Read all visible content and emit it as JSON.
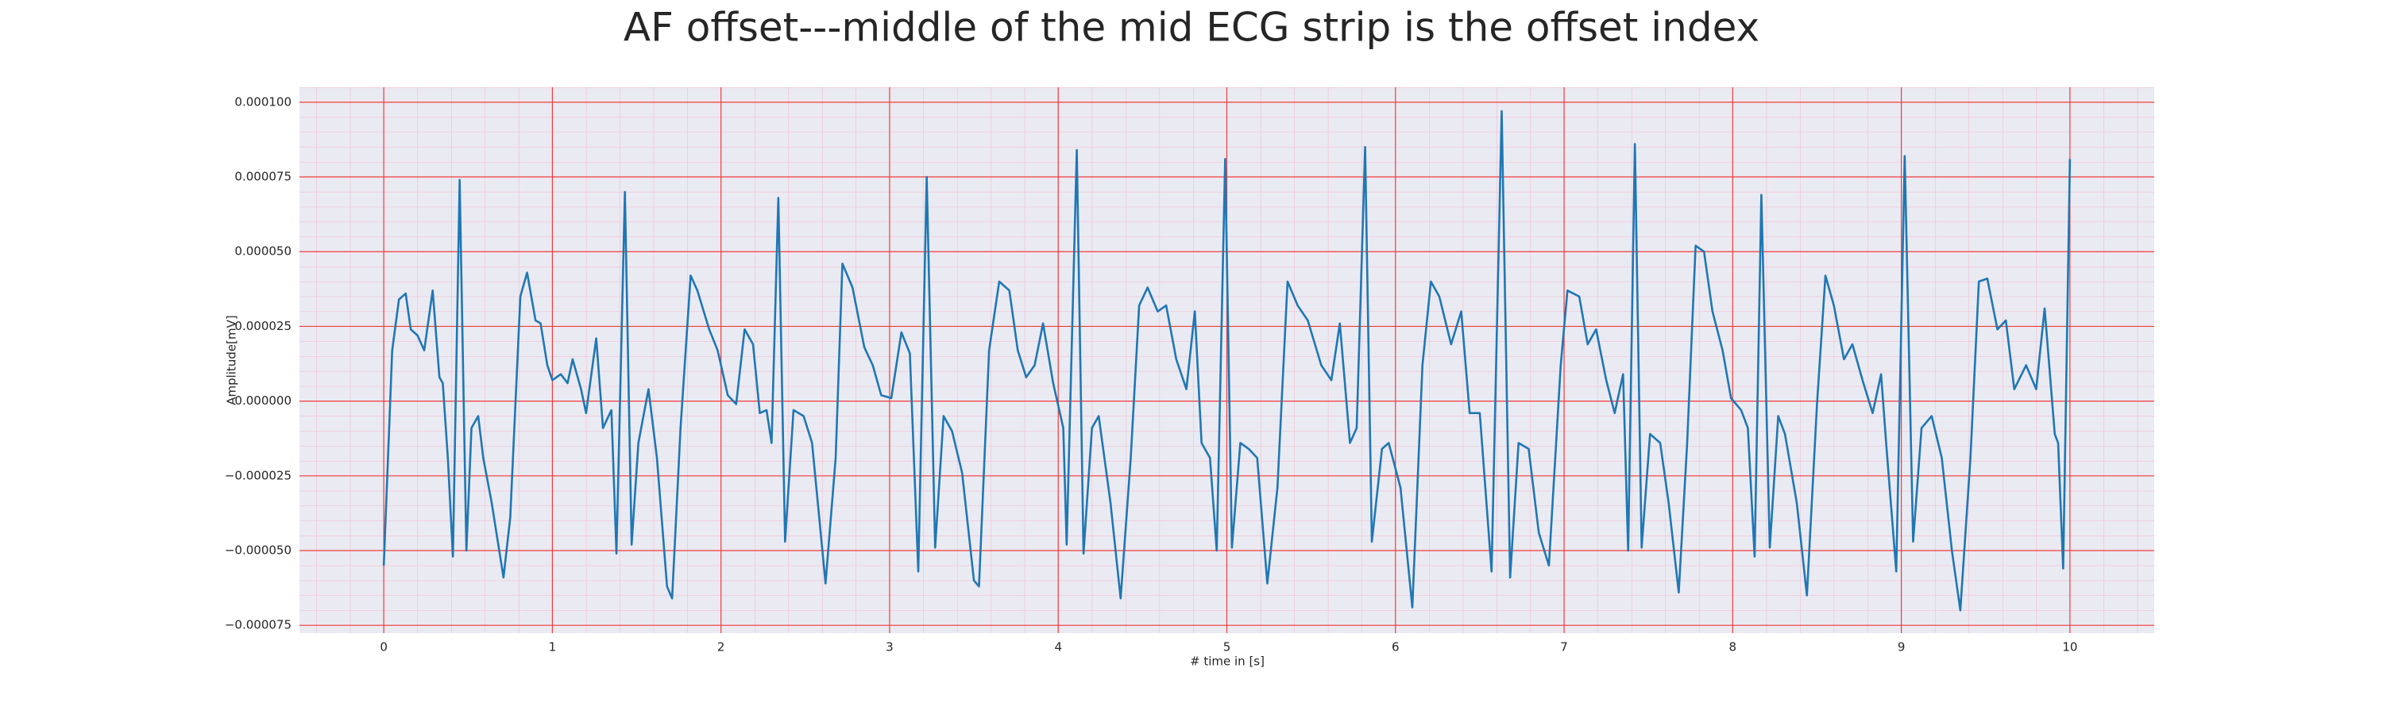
{
  "chart_data": {
    "type": "line",
    "title": "AF offset---middle of the mid ECG strip is the offset index",
    "xlabel": "# time in [s]",
    "ylabel": "Amplitude[mV]",
    "color": "#1f77b4",
    "grid": true,
    "minor_grid": true,
    "xlim": [
      -0.5,
      10.5
    ],
    "ylim": [
      -7.76e-05,
      0.000105
    ],
    "xticks": [
      0,
      1,
      2,
      3,
      4,
      5,
      6,
      7,
      8,
      9,
      10
    ],
    "yticks": [
      {
        "value": 0.0001,
        "label": "0.000100"
      },
      {
        "value": 7.5e-05,
        "label": "0.000075"
      },
      {
        "value": 5e-05,
        "label": "0.000050"
      },
      {
        "value": 2.5e-05,
        "label": "0.000025"
      },
      {
        "value": 0,
        "label": "0.000000"
      },
      {
        "value": -2.5e-05,
        "label": "−0.000025"
      },
      {
        "value": -5e-05,
        "label": "−0.000050"
      },
      {
        "value": -7.5e-05,
        "label": "−0.000075"
      }
    ],
    "x": [
      0,
      0.05,
      0.09,
      0.13,
      0.16,
      0.2,
      0.24,
      0.29,
      0.33,
      0.35,
      0.38,
      0.41,
      0.45,
      0.49,
      0.52,
      0.56,
      0.59,
      0.64,
      0.71,
      0.75,
      0.81,
      0.85,
      0.9,
      0.93,
      0.97,
      1.0,
      1.05,
      1.09,
      1.12,
      1.17,
      1.2,
      1.26,
      1.3,
      1.35,
      1.38,
      1.43,
      1.47,
      1.51,
      1.57,
      1.62,
      1.68,
      1.71,
      1.76,
      1.82,
      1.86,
      1.93,
      1.98,
      2.04,
      2.09,
      2.14,
      2.19,
      2.23,
      2.27,
      2.3,
      2.34,
      2.38,
      2.43,
      2.49,
      2.54,
      2.62,
      2.68,
      2.72,
      2.78,
      2.85,
      2.9,
      2.95,
      3.01,
      3.07,
      3.12,
      3.17,
      3.22,
      3.27,
      3.32,
      3.37,
      3.43,
      3.5,
      3.53,
      3.59,
      3.65,
      3.71,
      3.76,
      3.81,
      3.86,
      3.91,
      3.97,
      4.03,
      4.05,
      4.11,
      4.15,
      4.2,
      4.24,
      4.31,
      4.37,
      4.43,
      4.48,
      4.53,
      4.59,
      4.64,
      4.7,
      4.76,
      4.81,
      4.85,
      4.9,
      4.94,
      4.99,
      5.03,
      5.08,
      5.13,
      5.18,
      5.24,
      5.3,
      5.36,
      5.42,
      5.48,
      5.56,
      5.62,
      5.67,
      5.73,
      5.77,
      5.82,
      5.86,
      5.92,
      5.96,
      6.03,
      6.1,
      6.16,
      6.21,
      6.26,
      6.33,
      6.39,
      6.44,
      6.5,
      6.57,
      6.63,
      6.68,
      6.73,
      6.79,
      6.85,
      6.91,
      6.98,
      7.02,
      7.09,
      7.14,
      7.19,
      7.25,
      7.3,
      7.35,
      7.38,
      7.42,
      7.46,
      7.51,
      7.57,
      7.62,
      7.68,
      7.73,
      7.78,
      7.83,
      7.88,
      7.94,
      7.99,
      8.05,
      8.09,
      8.13,
      8.17,
      8.22,
      8.27,
      8.31,
      8.38,
      8.44,
      8.5,
      8.55,
      8.6,
      8.66,
      8.71,
      8.77,
      8.83,
      8.88,
      8.91,
      8.97,
      9.02,
      9.07,
      9.12,
      9.18,
      9.24,
      9.3,
      9.35,
      9.41,
      9.46,
      9.51,
      9.57,
      9.62,
      9.67,
      9.74,
      9.8,
      9.85,
      9.91,
      9.93,
      9.96,
      10
    ],
    "values": [
      -5.5e-05,
      1.7e-05,
      3.4e-05,
      3.6e-05,
      2.4e-05,
      2.2e-05,
      1.7e-05,
      3.7e-05,
      8e-06,
      6e-06,
      -1.9e-05,
      -5.2e-05,
      7.4e-05,
      -5e-05,
      -9e-06,
      -5e-06,
      -1.9e-05,
      -3.4e-05,
      -5.9e-05,
      -3.9e-05,
      3.5e-05,
      4.3e-05,
      2.7e-05,
      2.6e-05,
      1.2e-05,
      7e-06,
      9e-06,
      6e-06,
      1.4e-05,
      4e-06,
      -4e-06,
      2.1e-05,
      -9e-06,
      -3e-06,
      -5.1e-05,
      7e-05,
      -4.8e-05,
      -1.4e-05,
      4e-06,
      -1.9e-05,
      -6.2e-05,
      -6.6e-05,
      -9e-06,
      4.2e-05,
      3.7e-05,
      2.4e-05,
      1.7e-05,
      2e-06,
      -1e-06,
      2.4e-05,
      1.9e-05,
      -4e-06,
      -3e-06,
      -1.4e-05,
      6.8e-05,
      -4.7e-05,
      -3e-06,
      -5e-06,
      -1.4e-05,
      -6.1e-05,
      -1.9e-05,
      4.6e-05,
      3.8e-05,
      1.8e-05,
      1.2e-05,
      2e-06,
      1e-06,
      2.3e-05,
      1.6e-05,
      -5.7e-05,
      7.5e-05,
      -4.9e-05,
      -5e-06,
      -1e-05,
      -2.4e-05,
      -6e-05,
      -6.2e-05,
      1.7e-05,
      4e-05,
      3.7e-05,
      1.7e-05,
      8e-06,
      1.2e-05,
      2.6e-05,
      6e-06,
      -9e-06,
      -4.8e-05,
      8.4e-05,
      -5.1e-05,
      -9e-06,
      -5e-06,
      -3.4e-05,
      -6.6e-05,
      -1.9e-05,
      3.2e-05,
      3.8e-05,
      3e-05,
      3.2e-05,
      1.4e-05,
      4e-06,
      3e-05,
      -1.4e-05,
      -1.9e-05,
      -5e-05,
      8.1e-05,
      -4.9e-05,
      -1.4e-05,
      -1.6e-05,
      -1.9e-05,
      -6.1e-05,
      -2.9e-05,
      4e-05,
      3.2e-05,
      2.7e-05,
      1.2e-05,
      7e-06,
      2.6e-05,
      -1.4e-05,
      -9e-06,
      8.5e-05,
      -4.7e-05,
      -1.6e-05,
      -1.4e-05,
      -2.9e-05,
      -6.9e-05,
      1.2e-05,
      4e-05,
      3.5e-05,
      1.9e-05,
      3e-05,
      -4e-06,
      -4e-06,
      -5.7e-05,
      9.7e-05,
      -5.9e-05,
      -1.4e-05,
      -1.6e-05,
      -4.4e-05,
      -5.5e-05,
      1.2e-05,
      3.7e-05,
      3.5e-05,
      1.9e-05,
      2.4e-05,
      7e-06,
      -4e-06,
      9e-06,
      -5e-05,
      8.6e-05,
      -4.9e-05,
      -1.1e-05,
      -1.4e-05,
      -3.4e-05,
      -6.4e-05,
      -1.4e-05,
      5.2e-05,
      5e-05,
      3e-05,
      1.7e-05,
      1e-06,
      -3e-06,
      -9e-06,
      -5.2e-05,
      6.9e-05,
      -4.9e-05,
      -5e-06,
      -1.1e-05,
      -3.4e-05,
      -6.5e-05,
      -1e-06,
      4.2e-05,
      3.2e-05,
      1.4e-05,
      1.9e-05,
      7e-06,
      -4e-06,
      9e-06,
      -1.4e-05,
      -5.7e-05,
      8.2e-05,
      -4.7e-05,
      -9e-06,
      -5e-06,
      -1.9e-05,
      -5e-05,
      -7e-05,
      -1.9e-05,
      4e-05,
      4.1e-05,
      2.4e-05,
      2.7e-05,
      4e-06,
      1.2e-05,
      4e-06,
      3.1e-05,
      -1.1e-05,
      -1.4e-05,
      -5.6e-05,
      8.1e-05
    ]
  }
}
